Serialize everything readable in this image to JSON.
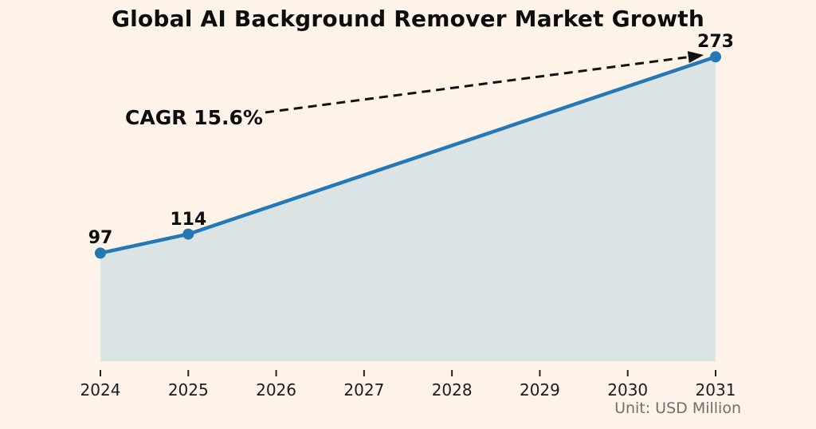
{
  "title": "Global AI Background Remover Market Growth",
  "annotation": {
    "label": "CAGR 15.6%"
  },
  "footnote": "Unit: USD Million",
  "chart_data": {
    "type": "area",
    "title": "Global AI Background Remover Market Growth",
    "x": [
      2024,
      2025,
      2026,
      2027,
      2028,
      2029,
      2030,
      2031
    ],
    "points": [
      {
        "year": 2024,
        "value": 97,
        "label": "97"
      },
      {
        "year": 2025,
        "value": 114,
        "label": "114"
      },
      {
        "year": 2031,
        "value": 273,
        "label": "273"
      }
    ],
    "annotation": "CAGR 15.6%",
    "unit_note": "Unit: USD Million",
    "xlabel": "",
    "ylabel": "",
    "ylim": [
      0,
      324
    ],
    "grid": false,
    "legend": "none",
    "colors": {
      "background": "#fdf3e8",
      "area_fill": "#dbe3e4",
      "line": "#2478b5",
      "marker": "#2478b5",
      "annotation_line": "#111111",
      "label_text": "#0d0d0d",
      "tick_text": "#1c1c1c",
      "unit_text": "#6f6f6f"
    }
  }
}
